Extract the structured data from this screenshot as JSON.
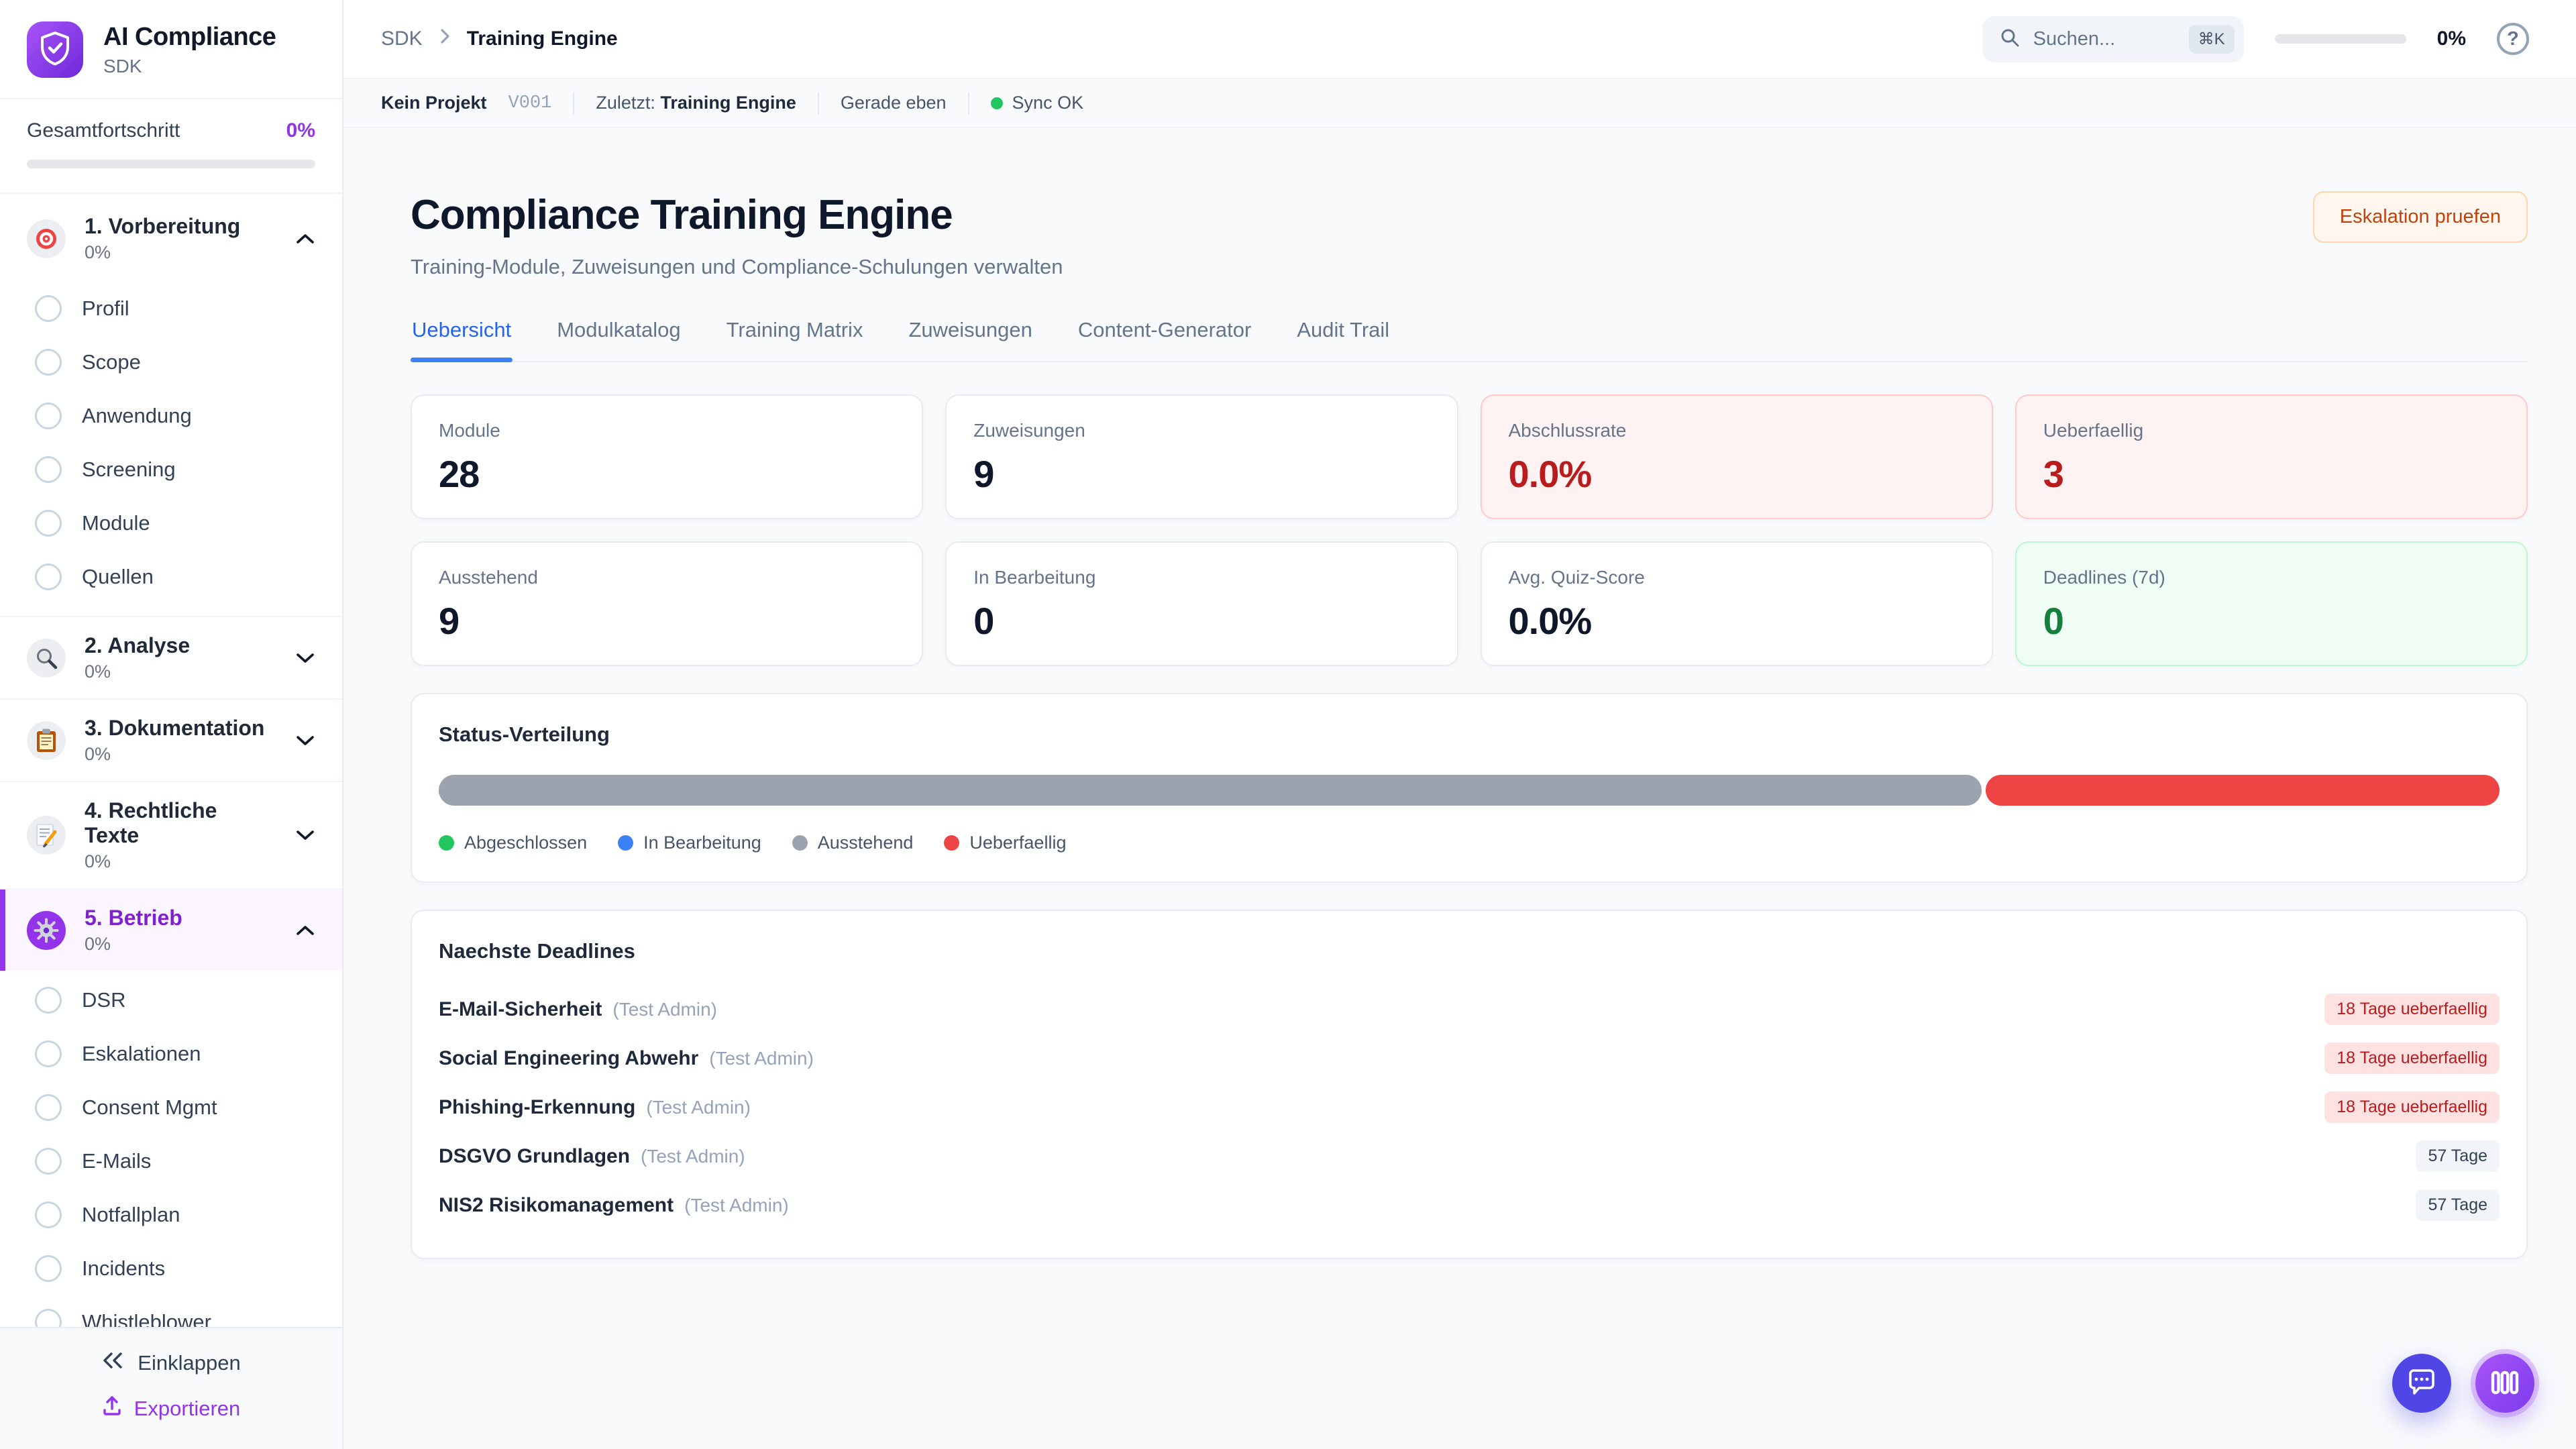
{
  "sidebar": {
    "logo": {
      "title": "AI Compliance",
      "subtitle": "SDK",
      "icon": "shield-check-icon",
      "accent": "#7c3aed"
    },
    "progress": {
      "label": "Gesamtfortschritt",
      "value": "0%",
      "percent": 0
    },
    "sections": [
      {
        "icon": "target-icon",
        "label": "1. Vorbereitung",
        "percent": "0%",
        "expanded": true,
        "active": false,
        "items": [
          "Profil",
          "Scope",
          "Anwendung",
          "Screening",
          "Module",
          "Quellen"
        ]
      },
      {
        "icon": "magnifier-icon",
        "label": "2. Analyse",
        "percent": "0%",
        "expanded": false,
        "active": false,
        "items": []
      },
      {
        "icon": "clipboard-icon",
        "label": "3. Dokumentation",
        "percent": "0%",
        "expanded": false,
        "active": false,
        "items": []
      },
      {
        "icon": "memo-icon",
        "label": "4. Rechtliche Texte",
        "percent": "0%",
        "expanded": false,
        "active": false,
        "items": []
      },
      {
        "icon": "gear-icon",
        "label": "5. Betrieb",
        "percent": "0%",
        "expanded": true,
        "active": true,
        "items": [
          "DSR",
          "Eskalationen",
          "Consent Mgmt",
          "E-Mails",
          "Notfallplan",
          "Incidents",
          "Whistleblower"
        ]
      }
    ],
    "footer": {
      "collapse": "Einklappen",
      "export": "Exportieren"
    }
  },
  "topbar": {
    "breadcrumb": {
      "root": "SDK",
      "current": "Training Engine"
    },
    "search": {
      "placeholder": "Suchen...",
      "shortcut": "⌘K"
    },
    "progress": {
      "value": "0%",
      "percent": 0
    },
    "help": "?"
  },
  "statusbar": {
    "project": "Kein Projekt",
    "version": "V001",
    "last_label": "Zuletzt:",
    "last_value": "Training Engine",
    "time": "Gerade eben",
    "sync": "Sync OK",
    "sync_color": "#22c55e"
  },
  "main": {
    "title": "Compliance Training Engine",
    "subtitle": "Training-Module, Zuweisungen und Compliance-Schulungen verwalten",
    "action_button": "Eskalation pruefen",
    "tabs": [
      {
        "label": "Uebersicht",
        "active": true
      },
      {
        "label": "Modulkatalog",
        "active": false
      },
      {
        "label": "Training Matrix",
        "active": false
      },
      {
        "label": "Zuweisungen",
        "active": false
      },
      {
        "label": "Content-Generator",
        "active": false
      },
      {
        "label": "Audit Trail",
        "active": false
      }
    ],
    "stats": [
      {
        "label": "Module",
        "value": "28",
        "variant": "default"
      },
      {
        "label": "Zuweisungen",
        "value": "9",
        "variant": "default"
      },
      {
        "label": "Abschlussrate",
        "value": "0.0%",
        "variant": "danger"
      },
      {
        "label": "Ueberfaellig",
        "value": "3",
        "variant": "danger"
      },
      {
        "label": "Ausstehend",
        "value": "9",
        "variant": "default"
      },
      {
        "label": "In Bearbeitung",
        "value": "0",
        "variant": "default"
      },
      {
        "label": "Avg. Quiz-Score",
        "value": "0.0%",
        "variant": "default"
      },
      {
        "label": "Deadlines (7d)",
        "value": "0",
        "variant": "success"
      }
    ],
    "status_chart": {
      "title": "Status-Verteilung",
      "type": "stacked-bar",
      "segments": [
        {
          "name": "Ausstehend",
          "percent": 75,
          "color": "#9ca3af"
        },
        {
          "name": "Ueberfaellig",
          "percent": 25,
          "color": "#ef4444"
        }
      ],
      "legend": [
        {
          "label": "Abgeschlossen",
          "color": "#22c55e"
        },
        {
          "label": "In Bearbeitung",
          "color": "#3b82f6"
        },
        {
          "label": "Ausstehend",
          "color": "#9ca3af"
        },
        {
          "label": "Ueberfaellig",
          "color": "#ef4444"
        }
      ]
    },
    "deadlines": {
      "title": "Naechste Deadlines",
      "items": [
        {
          "module": "E-Mail-Sicherheit",
          "assignee": "(Test Admin)",
          "badge": "18 Tage ueberfaellig",
          "overdue": true
        },
        {
          "module": "Social Engineering Abwehr",
          "assignee": "(Test Admin)",
          "badge": "18 Tage ueberfaellig",
          "overdue": true
        },
        {
          "module": "Phishing-Erkennung",
          "assignee": "(Test Admin)",
          "badge": "18 Tage ueberfaellig",
          "overdue": true
        },
        {
          "module": "DSGVO Grundlagen",
          "assignee": "(Test Admin)",
          "badge": "57 Tage",
          "overdue": false
        },
        {
          "module": "NIS2 Risikomanagement",
          "assignee": "(Test Admin)",
          "badge": "57 Tage",
          "overdue": false
        }
      ]
    }
  },
  "fabs": [
    {
      "name": "chat-fab",
      "icon": "chat-bubble-icon",
      "color": "#4f46e5"
    },
    {
      "name": "panel-fab",
      "icon": "columns-icon",
      "color": "#8b5cf6"
    }
  ]
}
